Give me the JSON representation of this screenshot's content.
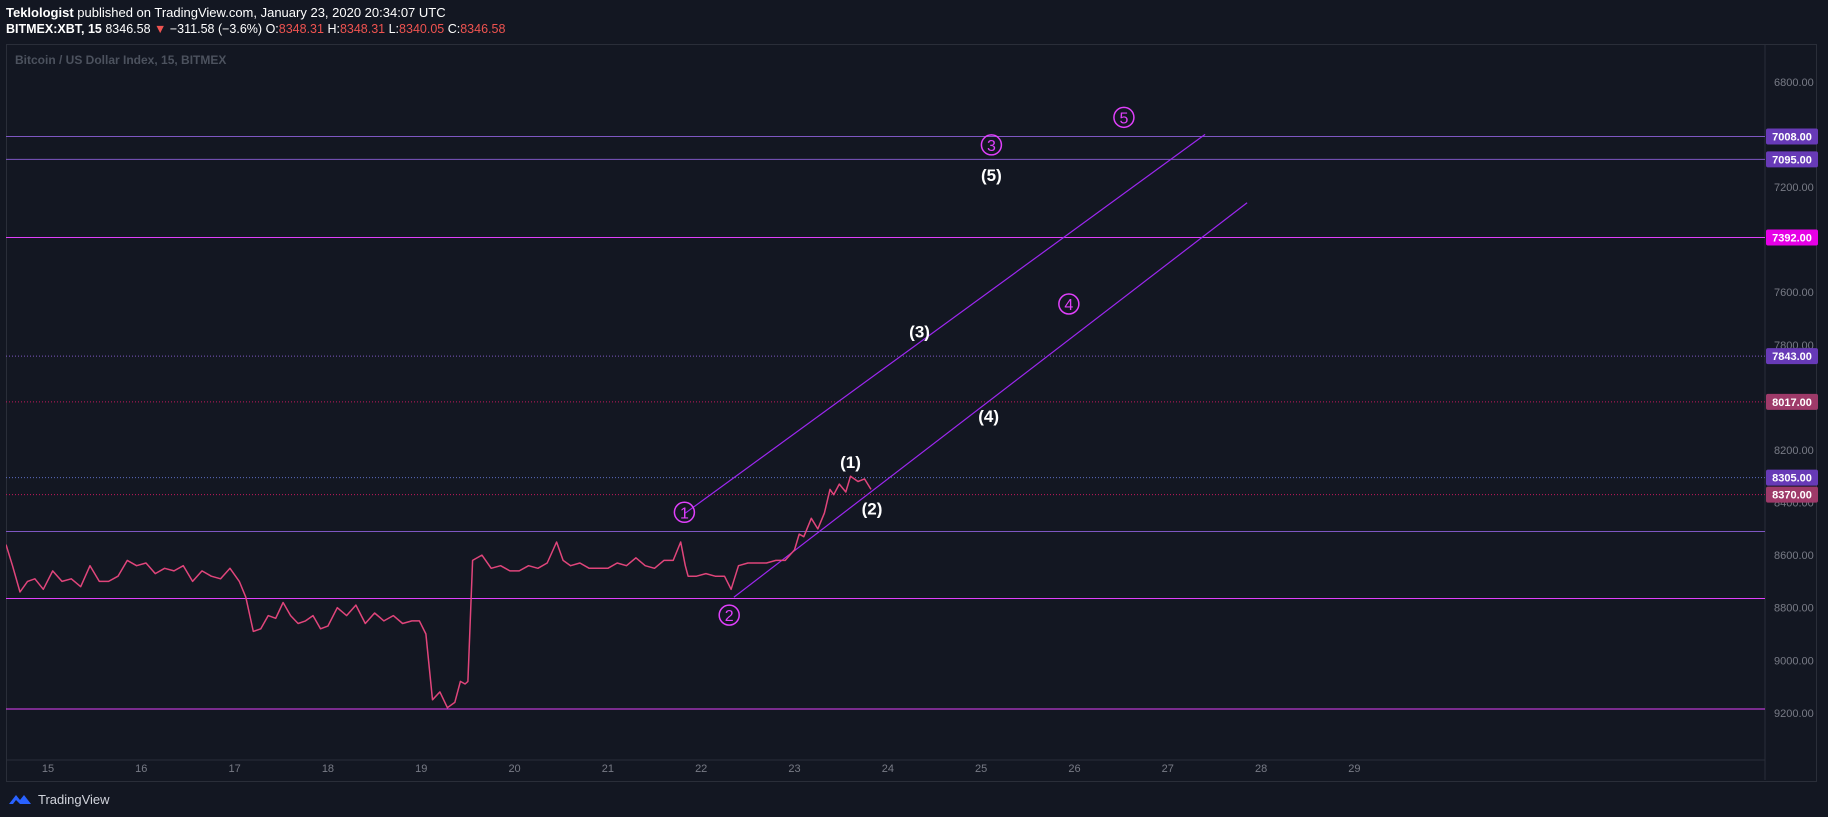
{
  "header": {
    "author": "Teklologist",
    "published_text": "published on TradingView.com, January 23, 2020 20:34:07 UTC",
    "symbol": "BITMEX:XBT, 15",
    "last": "8346.58",
    "down_arrow": "▼",
    "change": "−311.58 (−3.6%)",
    "o_label": "O:",
    "o": "8348.31",
    "h_label": "H:",
    "h": "8348.31",
    "l_label": "L:",
    "l": "8340.05",
    "c_label": "C:",
    "c": "8346.58"
  },
  "footer": {
    "brand": "TradingView",
    "logo_icon": "tradingview-logo-icon"
  },
  "colors": {
    "background": "#131722",
    "price_line": "#e0457b",
    "channel": "#9c27ef",
    "level_magenta": "#e040fb",
    "level_purple": "#7e57c2",
    "badge_pink": "#9e3a69",
    "badge_magenta": "#e600e6",
    "badge_purple": "#673ab7"
  },
  "chart_data": {
    "type": "line",
    "title": "Bitcoin / US Dollar Index, 15, BITMEX",
    "y_axis": {
      "inverted": true,
      "ylim": [
        6660,
        9360
      ],
      "ticks": [
        6800,
        7000,
        7200,
        7400,
        7600,
        7800,
        8000,
        8200,
        8400,
        8600,
        8800,
        9000,
        9200
      ]
    },
    "y_tick_labels": [
      "6800.00",
      "7000.00",
      "7200.00",
      "7400.00",
      "7600.00",
      "7800.00",
      "8000.00",
      "8200.00",
      "8400.00",
      "8600.00",
      "8800.00",
      "9000.00",
      "9200.00"
    ],
    "x_axis": {
      "xlim": [
        14.55,
        33.4
      ],
      "ticks": [
        15,
        16,
        17,
        18,
        19,
        20,
        21,
        22,
        23,
        24,
        25,
        26,
        27,
        28,
        29
      ]
    },
    "x_tick_labels": [
      "15",
      "16",
      "17",
      "18",
      "19",
      "20",
      "21",
      "22",
      "23",
      "24",
      "25",
      "26",
      "27",
      "28",
      "29"
    ],
    "series": [
      {
        "x": [
          14.55,
          14.62,
          14.7,
          14.78,
          14.86,
          14.95,
          15.05,
          15.15,
          15.25,
          15.35,
          15.45,
          15.55,
          15.65,
          15.75,
          15.85,
          15.95,
          16.05,
          16.15,
          16.25,
          16.35,
          16.45,
          16.55,
          16.65,
          16.75,
          16.85,
          16.95,
          17.05,
          17.12,
          17.2,
          17.28,
          17.36,
          17.44,
          17.52,
          17.6,
          17.68,
          17.76,
          17.84,
          17.92,
          18.0,
          18.1,
          18.2,
          18.3,
          18.4,
          18.5,
          18.6,
          18.7,
          18.8,
          18.9,
          18.98,
          19.05,
          19.12,
          19.2,
          19.28,
          19.36,
          19.42,
          19.47,
          19.5,
          19.55,
          19.65,
          19.75,
          19.85,
          19.95,
          20.05,
          20.15,
          20.25,
          20.35,
          20.45,
          20.52,
          20.6,
          20.7,
          20.8,
          20.9,
          21.0,
          21.1,
          21.2,
          21.3,
          21.4,
          21.5,
          21.6,
          21.7,
          21.78,
          21.83,
          21.86,
          21.95,
          22.05,
          22.15,
          22.25,
          22.32,
          22.4,
          22.5,
          22.6,
          22.7,
          22.8,
          22.9,
          23.0,
          23.05,
          23.1,
          23.18,
          23.25,
          23.32,
          23.38,
          23.42,
          23.48,
          23.55,
          23.6,
          23.68,
          23.75,
          23.82
        ],
        "y": [
          8560,
          8640,
          8740,
          8700,
          8690,
          8730,
          8660,
          8700,
          8690,
          8720,
          8640,
          8700,
          8700,
          8680,
          8620,
          8640,
          8630,
          8670,
          8650,
          8660,
          8640,
          8700,
          8660,
          8680,
          8690,
          8650,
          8700,
          8760,
          8890,
          8880,
          8830,
          8840,
          8780,
          8830,
          8860,
          8850,
          8830,
          8880,
          8870,
          8800,
          8830,
          8790,
          8860,
          8820,
          8850,
          8830,
          8860,
          8850,
          8850,
          8900,
          9150,
          9120,
          9180,
          9160,
          9080,
          9090,
          9080,
          8620,
          8600,
          8650,
          8640,
          8660,
          8660,
          8640,
          8650,
          8630,
          8550,
          8620,
          8640,
          8630,
          8650,
          8650,
          8650,
          8630,
          8640,
          8610,
          8640,
          8650,
          8620,
          8620,
          8550,
          8640,
          8680,
          8680,
          8670,
          8680,
          8680,
          8730,
          8640,
          8630,
          8630,
          8630,
          8620,
          8620,
          8580,
          8520,
          8530,
          8460,
          8500,
          8440,
          8350,
          8370,
          8330,
          8360,
          8300,
          8320,
          8310,
          8350
        ]
      }
    ],
    "horizontal_levels": [
      {
        "price": 7008,
        "label": "7008.00",
        "style": "solid",
        "color": "#7e57c2",
        "badge": "#673ab7"
      },
      {
        "price": 7095,
        "label": "7095.00",
        "style": "solid",
        "color": "#7e57c2",
        "badge": "#673ab7"
      },
      {
        "price": 7392,
        "label": "7392.00",
        "style": "solid",
        "color": "#e040fb",
        "badge": "#e600e6"
      },
      {
        "price": 7843,
        "label": "7843.00",
        "style": "dotted",
        "color": "#7e57c2",
        "badge": "#673ab7"
      },
      {
        "price": 8017,
        "label": "8017.00",
        "style": "dotted",
        "color": "#c2185b",
        "badge": "#9e3a69"
      },
      {
        "price": 8305,
        "label": "8305.00",
        "style": "dotted",
        "color": "#5c6bc0",
        "badge": "#673ab7"
      },
      {
        "price": 8370,
        "label": "8370.00",
        "style": "dotted",
        "color": "#c2185b",
        "badge": "#9e3a69"
      },
      {
        "price": 8510,
        "label": "",
        "style": "solid",
        "color": "#7e57c2",
        "badge": ""
      },
      {
        "price": 8765,
        "label": "",
        "style": "solid",
        "color": "#e040fb",
        "badge": ""
      },
      {
        "price": 9185,
        "label": "",
        "style": "solid",
        "color": "#e040fb",
        "badge": ""
      }
    ],
    "trend_lines": [
      {
        "x1": 21.83,
        "y1": 8440,
        "x2": 27.4,
        "y2": 7000
      },
      {
        "x1": 22.35,
        "y1": 8760,
        "x2": 27.85,
        "y2": 7260
      }
    ],
    "wave_labels": [
      {
        "text": "1",
        "circled": true,
        "x": 21.82,
        "y": 8437
      },
      {
        "text": "2",
        "circled": true,
        "x": 22.3,
        "y": 8828
      },
      {
        "text": "3",
        "circled": true,
        "x": 25.11,
        "y": 7040
      },
      {
        "text": "4",
        "circled": true,
        "x": 25.94,
        "y": 7645
      },
      {
        "text": "5",
        "circled": true,
        "x": 26.53,
        "y": 6935
      },
      {
        "text": "(1)",
        "circled": false,
        "x": 23.6,
        "y": 8245
      },
      {
        "text": "(2)",
        "circled": false,
        "x": 23.83,
        "y": 8423
      },
      {
        "text": "(3)",
        "circled": false,
        "x": 24.34,
        "y": 7750
      },
      {
        "text": "(4)",
        "circled": false,
        "x": 25.08,
        "y": 8070
      },
      {
        "text": "(5)",
        "circled": false,
        "x": 25.11,
        "y": 7155
      }
    ]
  }
}
